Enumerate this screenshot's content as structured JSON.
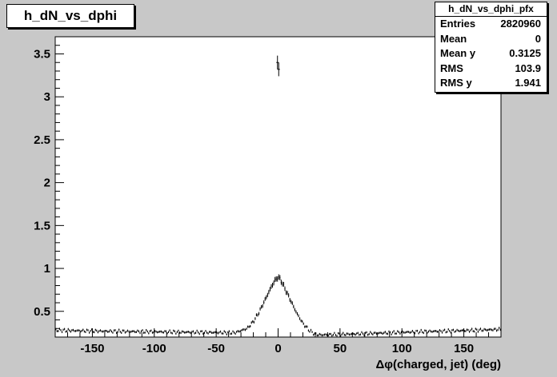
{
  "window": {
    "title": "h_dN_vs_dphi"
  },
  "stats": {
    "name": "h_dN_vs_dphi_pfx",
    "rows": [
      {
        "label": "Entries",
        "value": "2820960"
      },
      {
        "label": "Mean",
        "value": "0"
      },
      {
        "label": "Mean y",
        "value": "0.3125"
      },
      {
        "label": "RMS",
        "value": "103.9"
      },
      {
        "label": "RMS y",
        "value": "1.941"
      }
    ]
  },
  "colors": {
    "canvas": "#c8c8c8",
    "frame": "#ffffff",
    "markers": "#000000"
  },
  "chart_data": {
    "type": "scatter",
    "title": "h_dN_vs_dphi",
    "xlabel": "Δφ(charged, jet) (deg)",
    "ylabel": "",
    "xlim": [
      -180,
      180
    ],
    "ylim": [
      0.2,
      3.7
    ],
    "xticks": [
      -150,
      -100,
      -50,
      0,
      50,
      100,
      150
    ],
    "yticks": [
      0.5,
      1,
      1.5,
      2,
      2.5,
      3,
      3.5
    ],
    "grid": false,
    "legend": "none",
    "bin_width_deg": 1,
    "baseline_level": 0.27,
    "profile": [
      {
        "x": -180,
        "y": 0.28
      },
      {
        "x": -150,
        "y": 0.27
      },
      {
        "x": -120,
        "y": 0.265
      },
      {
        "x": -90,
        "y": 0.26
      },
      {
        "x": -60,
        "y": 0.255
      },
      {
        "x": -35,
        "y": 0.25
      },
      {
        "x": -25,
        "y": 0.3
      },
      {
        "x": -20,
        "y": 0.38
      },
      {
        "x": -15,
        "y": 0.5
      },
      {
        "x": -10,
        "y": 0.65
      },
      {
        "x": -5,
        "y": 0.8
      },
      {
        "x": -2,
        "y": 0.87
      },
      {
        "x": 0,
        "y": 0.9
      },
      {
        "x": 2,
        "y": 0.87
      },
      {
        "x": 5,
        "y": 0.78
      },
      {
        "x": 10,
        "y": 0.63
      },
      {
        "x": 15,
        "y": 0.48
      },
      {
        "x": 20,
        "y": 0.36
      },
      {
        "x": 25,
        "y": 0.28
      },
      {
        "x": 30,
        "y": 0.23
      },
      {
        "x": 35,
        "y": 0.225
      },
      {
        "x": 60,
        "y": 0.235
      },
      {
        "x": 90,
        "y": 0.25
      },
      {
        "x": 120,
        "y": 0.265
      },
      {
        "x": 150,
        "y": 0.275
      },
      {
        "x": 180,
        "y": 0.29
      }
    ],
    "outliers": [
      {
        "x": -0.5,
        "y": 3.4,
        "err": 0.08
      },
      {
        "x": 0.5,
        "y": 3.32,
        "err": 0.08
      }
    ]
  }
}
